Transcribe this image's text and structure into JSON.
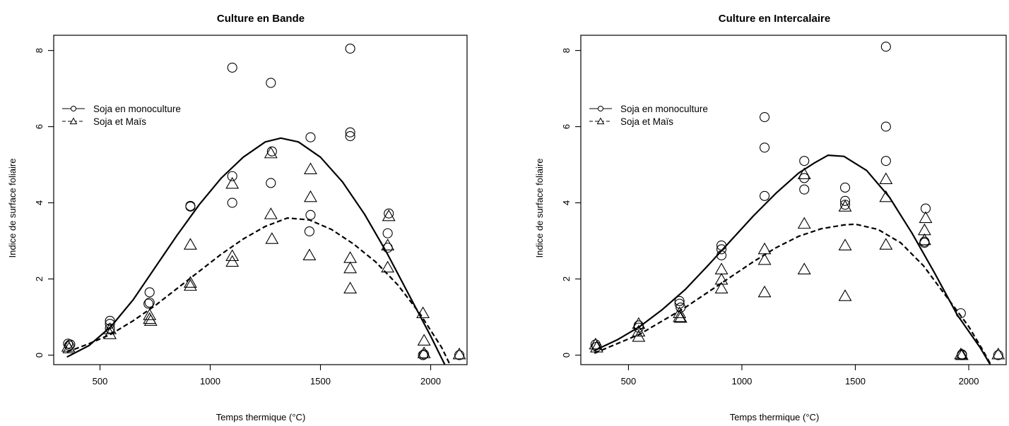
{
  "chart_data": [
    {
      "type": "scatter",
      "title": "Culture en Bande",
      "xlabel": "Temps thermique (°C)",
      "ylabel": "Indice de surface foliaire",
      "xlim": [
        290,
        2165
      ],
      "ylim": [
        -0.25,
        8.4
      ],
      "xticks": [
        500,
        1000,
        1500,
        2000
      ],
      "yticks": [
        0,
        2,
        4,
        6,
        8
      ],
      "legend_position": "top-left",
      "series": [
        {
          "name": "Soja en monoculture",
          "marker": "circle",
          "points": [
            [
              355,
              0.3
            ],
            [
              360,
              0.25
            ],
            [
              365,
              0.28
            ],
            [
              545,
              0.9
            ],
            [
              545,
              0.82
            ],
            [
              545,
              0.7
            ],
            [
              725,
              1.65
            ],
            [
              725,
              1.38
            ],
            [
              720,
              1.35
            ],
            [
              910,
              3.92
            ],
            [
              910,
              3.9
            ],
            [
              1100,
              7.55
            ],
            [
              1100,
              4.7
            ],
            [
              1100,
              4.0
            ],
            [
              1275,
              7.15
            ],
            [
              1280,
              5.35
            ],
            [
              1275,
              4.52
            ],
            [
              1455,
              5.72
            ],
            [
              1455,
              3.68
            ],
            [
              1450,
              3.25
            ],
            [
              1635,
              8.05
            ],
            [
              1635,
              5.85
            ],
            [
              1635,
              5.75
            ],
            [
              1810,
              3.72
            ],
            [
              1805,
              3.2
            ],
            [
              1805,
              2.82
            ],
            [
              1965,
              0.0
            ],
            [
              1970,
              0.02
            ],
            [
              2130,
              0.0
            ]
          ],
          "fit": [
            [
              350,
              -0.05
            ],
            [
              450,
              0.25
            ],
            [
              550,
              0.75
            ],
            [
              650,
              1.45
            ],
            [
              750,
              2.3
            ],
            [
              850,
              3.15
            ],
            [
              950,
              3.95
            ],
            [
              1050,
              4.65
            ],
            [
              1150,
              5.2
            ],
            [
              1250,
              5.6
            ],
            [
              1320,
              5.7
            ],
            [
              1400,
              5.6
            ],
            [
              1500,
              5.2
            ],
            [
              1600,
              4.55
            ],
            [
              1700,
              3.7
            ],
            [
              1800,
              2.7
            ],
            [
              1900,
              1.6
            ],
            [
              2000,
              0.5
            ],
            [
              2060,
              -0.2
            ],
            [
              2115,
              -0.9
            ]
          ]
        },
        {
          "name": "Soja et Maïs",
          "marker": "triangle",
          "points": [
            [
              355,
              0.22
            ],
            [
              360,
              0.18
            ],
            [
              545,
              0.55
            ],
            [
              545,
              0.68
            ],
            [
              725,
              0.95
            ],
            [
              725,
              1.05
            ],
            [
              730,
              0.9
            ],
            [
              910,
              2.9
            ],
            [
              910,
              1.9
            ],
            [
              910,
              1.82
            ],
            [
              1100,
              4.5
            ],
            [
              1100,
              2.6
            ],
            [
              1100,
              2.45
            ],
            [
              1275,
              5.3
            ],
            [
              1275,
              3.7
            ],
            [
              1280,
              3.05
            ],
            [
              1455,
              4.88
            ],
            [
              1455,
              4.15
            ],
            [
              1450,
              2.62
            ],
            [
              1635,
              2.55
            ],
            [
              1635,
              2.28
            ],
            [
              1635,
              1.75
            ],
            [
              1810,
              3.65
            ],
            [
              1805,
              2.88
            ],
            [
              1805,
              2.3
            ],
            [
              1965,
              1.1
            ],
            [
              1970,
              0.38
            ],
            [
              1970,
              0.05
            ],
            [
              2130,
              0.02
            ]
          ],
          "fit": [
            [
              350,
              0.08
            ],
            [
              450,
              0.3
            ],
            [
              550,
              0.55
            ],
            [
              650,
              0.9
            ],
            [
              750,
              1.3
            ],
            [
              850,
              1.75
            ],
            [
              950,
              2.2
            ],
            [
              1050,
              2.65
            ],
            [
              1150,
              3.05
            ],
            [
              1250,
              3.38
            ],
            [
              1350,
              3.6
            ],
            [
              1450,
              3.55
            ],
            [
              1550,
              3.3
            ],
            [
              1650,
              2.92
            ],
            [
              1750,
              2.45
            ],
            [
              1850,
              1.85
            ],
            [
              1950,
              1.1
            ],
            [
              2050,
              0.2
            ],
            [
              2100,
              -0.4
            ],
            [
              2140,
              -0.95
            ]
          ]
        }
      ]
    },
    {
      "type": "scatter",
      "title": "Culture en Intercalaire",
      "xlabel": "Temps thermique (°C)",
      "ylabel": "Indice de surface foliaire",
      "xlim": [
        290,
        2165
      ],
      "ylim": [
        -0.25,
        8.4
      ],
      "xticks": [
        500,
        1000,
        1500,
        2000
      ],
      "yticks": [
        0,
        2,
        4,
        6,
        8
      ],
      "legend_position": "top-left",
      "series": [
        {
          "name": "Soja en monoculture",
          "marker": "circle",
          "points": [
            [
              355,
              0.28
            ],
            [
              360,
              0.22
            ],
            [
              545,
              0.78
            ],
            [
              545,
              0.72
            ],
            [
              725,
              1.42
            ],
            [
              725,
              1.35
            ],
            [
              730,
              1.25
            ],
            [
              910,
              2.88
            ],
            [
              910,
              2.78
            ],
            [
              910,
              2.62
            ],
            [
              1100,
              6.25
            ],
            [
              1100,
              5.45
            ],
            [
              1100,
              4.18
            ],
            [
              1275,
              5.1
            ],
            [
              1275,
              4.65
            ],
            [
              1275,
              4.35
            ],
            [
              1455,
              4.4
            ],
            [
              1455,
              4.05
            ],
            [
              1455,
              3.95
            ],
            [
              1635,
              8.1
            ],
            [
              1635,
              6.0
            ],
            [
              1635,
              5.1
            ],
            [
              1810,
              3.85
            ],
            [
              1805,
              2.98
            ],
            [
              1805,
              2.95
            ],
            [
              1965,
              1.1
            ],
            [
              1970,
              0.02
            ],
            [
              1970,
              0.0
            ],
            [
              2130,
              0.0
            ]
          ],
          "fit": [
            [
              350,
              0.12
            ],
            [
              450,
              0.4
            ],
            [
              550,
              0.75
            ],
            [
              650,
              1.2
            ],
            [
              750,
              1.72
            ],
            [
              850,
              2.35
            ],
            [
              950,
              3.0
            ],
            [
              1050,
              3.65
            ],
            [
              1150,
              4.25
            ],
            [
              1250,
              4.78
            ],
            [
              1320,
              5.05
            ],
            [
              1380,
              5.25
            ],
            [
              1450,
              5.22
            ],
            [
              1550,
              4.85
            ],
            [
              1650,
              4.15
            ],
            [
              1750,
              3.2
            ],
            [
              1850,
              2.15
            ],
            [
              1950,
              1.05
            ],
            [
              2050,
              0.2
            ],
            [
              2110,
              -0.4
            ]
          ]
        },
        {
          "name": "Soja et Maïs",
          "marker": "triangle",
          "points": [
            [
              355,
              0.28
            ],
            [
              360,
              0.2
            ],
            [
              545,
              0.82
            ],
            [
              545,
              0.62
            ],
            [
              545,
              0.48
            ],
            [
              725,
              1.1
            ],
            [
              725,
              1.0
            ],
            [
              730,
              0.98
            ],
            [
              910,
              2.25
            ],
            [
              910,
              1.98
            ],
            [
              910,
              1.75
            ],
            [
              1100,
              2.78
            ],
            [
              1100,
              2.5
            ],
            [
              1100,
              1.65
            ],
            [
              1275,
              4.75
            ],
            [
              1275,
              3.45
            ],
            [
              1275,
              2.25
            ],
            [
              1455,
              3.9
            ],
            [
              1455,
              2.88
            ],
            [
              1455,
              1.55
            ],
            [
              1635,
              4.62
            ],
            [
              1635,
              4.15
            ],
            [
              1635,
              2.9
            ],
            [
              1810,
              3.6
            ],
            [
              1805,
              3.28
            ],
            [
              1805,
              3.02
            ],
            [
              1965,
              0.02
            ],
            [
              1970,
              0.0
            ],
            [
              2130,
              0.02
            ]
          ],
          "fit": [
            [
              350,
              0.05
            ],
            [
              450,
              0.3
            ],
            [
              550,
              0.55
            ],
            [
              650,
              0.9
            ],
            [
              750,
              1.25
            ],
            [
              850,
              1.65
            ],
            [
              950,
              2.05
            ],
            [
              1050,
              2.45
            ],
            [
              1150,
              2.82
            ],
            [
              1250,
              3.12
            ],
            [
              1350,
              3.32
            ],
            [
              1450,
              3.42
            ],
            [
              1500,
              3.44
            ],
            [
              1600,
              3.3
            ],
            [
              1700,
              2.95
            ],
            [
              1800,
              2.35
            ],
            [
              1900,
              1.55
            ],
            [
              2000,
              0.75
            ],
            [
              2060,
              0.15
            ],
            [
              2110,
              -0.38
            ]
          ]
        }
      ]
    }
  ]
}
